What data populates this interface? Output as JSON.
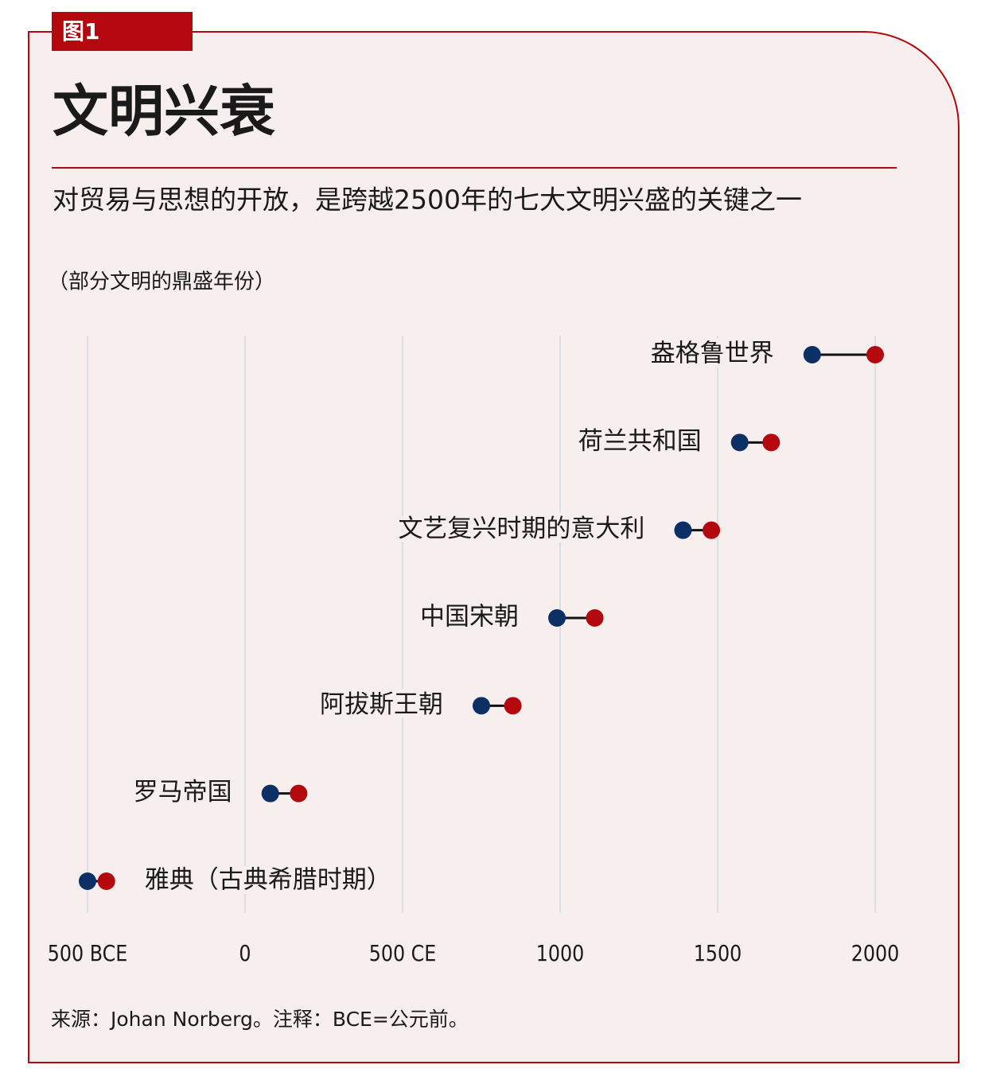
{
  "badge": "图1",
  "chart_data": {
    "type": "dumbbell",
    "title": "文明兴衰",
    "subtitle": "对贸易与思想的开放，是跨越2500年的七大文明兴盛的关键之一",
    "axis_note": "（部分文明的鼎盛年份）",
    "categories": [
      "盎格鲁世界",
      "荷兰共和国",
      "文艺复兴时期的意大利",
      "中国宋朝",
      "阿拔斯王朝",
      "罗马帝国",
      "雅典（古典希腊时期）"
    ],
    "series": [
      {
        "color": "#0c2f66",
        "values": [
          1800,
          1570,
          1390,
          990,
          750,
          80,
          -500
        ]
      },
      {
        "color": "#b3080d",
        "values": [
          2000,
          1670,
          1480,
          1110,
          850,
          170,
          -440
        ]
      }
    ],
    "xlim": [
      -500,
      2000
    ],
    "xticks": [
      {
        "value": -500,
        "label": "500 BCE"
      },
      0,
      {
        "value": 500,
        "label": "500 CE"
      },
      1000,
      1500,
      2000
    ],
    "grid": true,
    "source": "来源：Johan Norberg。注释：BCE=公元前。"
  }
}
